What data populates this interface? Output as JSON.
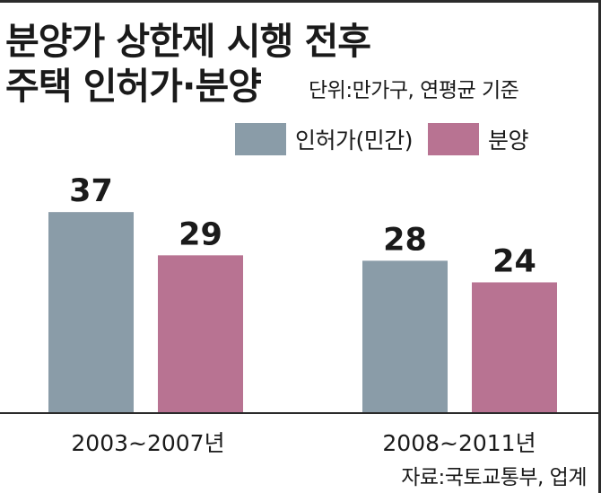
{
  "title_line1": "분양가 상한제 시행 전후",
  "title_line2": "주택 인허가·분양",
  "unit_note": "단위:만가구, 연평균 기준",
  "source": "자료:국토교통부, 업계",
  "colors": {
    "permits": "#8a9ca8",
    "sales": "#b87392",
    "axis": "#2b2b2b"
  },
  "chart_data": {
    "type": "bar",
    "categories": [
      "2003~2007년",
      "2008~2011년"
    ],
    "series": [
      {
        "name": "인허가(민간)",
        "values": [
          37,
          28
        ]
      },
      {
        "name": "분양",
        "values": [
          29,
          24
        ]
      }
    ],
    "ylim": [
      0,
      43.5
    ],
    "legend": "top-right",
    "grid": false
  }
}
